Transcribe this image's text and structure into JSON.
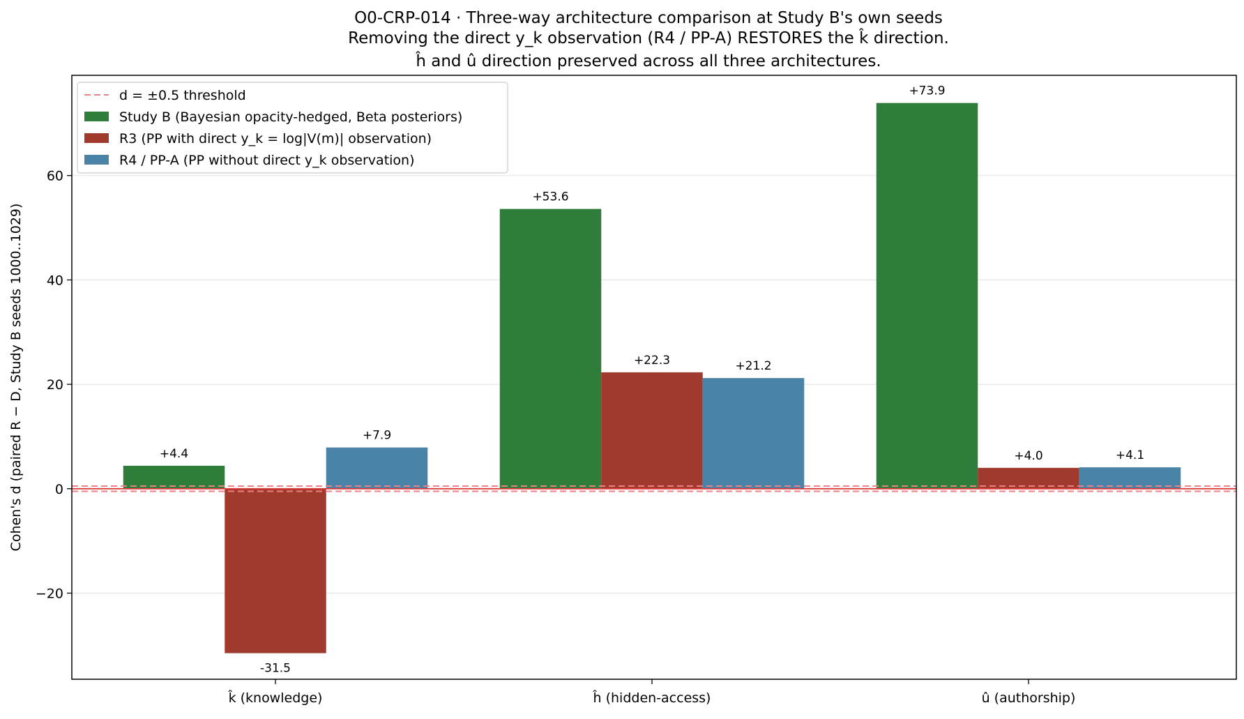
{
  "chart_data": {
    "type": "bar",
    "title_lines": [
      "O0-CRP-014 · Three-way architecture comparison at Study B's own seeds",
      "Removing the direct y_k observation (R4 / PP-A) RESTORES the k̂ direction.",
      "ĥ and û direction preserved across all three architectures."
    ],
    "ylabel": "Cohen's d (paired R − D, Study B seeds 1000..1029)",
    "xlabel": "",
    "categories": [
      "k̂ (knowledge)",
      "ĥ (hidden-access)",
      "û (authorship)"
    ],
    "series": [
      {
        "name": "Study B (Bayesian opacity-hedged, Beta posteriors)",
        "color": "#2e7d3a",
        "values": [
          4.4,
          53.6,
          73.9
        ],
        "labels": [
          "+4.4",
          "+53.6",
          "+73.9"
        ]
      },
      {
        "name": "R3 (PP with direct y_k = log|V(m)| observation)",
        "color": "#9f3a2d",
        "values": [
          -31.5,
          22.3,
          4.0
        ],
        "labels": [
          "-31.5",
          "+22.3",
          "+4.0"
        ]
      },
      {
        "name": "R4 / PP-A (PP without direct y_k observation)",
        "color": "#4a83a6",
        "values": [
          7.9,
          21.2,
          4.1
        ],
        "labels": [
          "+7.9",
          "+21.2",
          "+4.1"
        ]
      }
    ],
    "threshold": {
      "label": "d = ±0.5 threshold",
      "values": [
        0.5,
        -0.5
      ],
      "color": "#f07e86"
    },
    "zero_line_color": "#e03a3a",
    "ylim": [
      -36.5,
      79.2
    ],
    "yticks": [
      -20,
      0,
      20,
      40,
      60
    ],
    "ytick_labels": [
      "−20",
      "0",
      "20",
      "40",
      "60"
    ],
    "grid": "y",
    "legend_position": "top-left"
  }
}
